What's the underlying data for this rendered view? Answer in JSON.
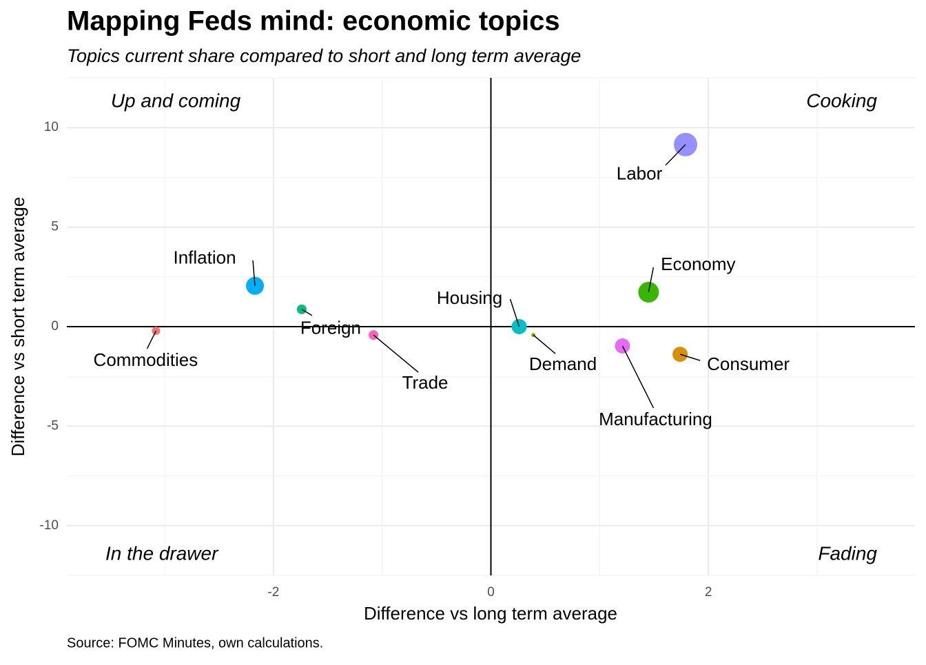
{
  "chart_data": {
    "type": "scatter",
    "title": "Mapping Feds mind: economic topics",
    "subtitle": "Topics current share compared to short and long term average",
    "x_label": "Difference vs long term average",
    "y_label": "Difference vs short term average",
    "caption": "Source: FOMC Minutes, own calculations.",
    "quadrant_labels": [
      "Up and coming",
      "Cooking",
      "In the drawer",
      "Fading"
    ],
    "labels": [
      "Commodities",
      "Consumer",
      "Demand",
      "Economy",
      "Foreign",
      "Housing",
      "Inflation",
      "Labor",
      "Manufacturing",
      "Trade"
    ],
    "x": [
      -3.08,
      1.74,
      0.39,
      1.45,
      -1.74,
      0.26,
      -2.17,
      1.79,
      1.21,
      -1.08
    ],
    "y": [
      -0.21,
      -1.39,
      -0.42,
      1.73,
      0.87,
      0.0,
      2.05,
      9.15,
      -0.97,
      -0.42
    ],
    "sizes": [
      36,
      121,
      9,
      225,
      49,
      121,
      169,
      289,
      121,
      49
    ],
    "colors": [
      "#F8766D",
      "#D89000",
      "#A3A500",
      "#39B600",
      "#00BF7D",
      "#00BFC4",
      "#00B0F6",
      "#9590FF",
      "#E76BF3",
      "#FF62BC"
    ],
    "xlim": [
      -3.9,
      3.9
    ],
    "ylim": [
      -12.5,
      12.5
    ],
    "xticks": [
      -2,
      0,
      2
    ],
    "yticks": [
      -10,
      -5,
      0,
      5,
      10
    ],
    "hline": 0,
    "vline": 0,
    "grid": true
  }
}
